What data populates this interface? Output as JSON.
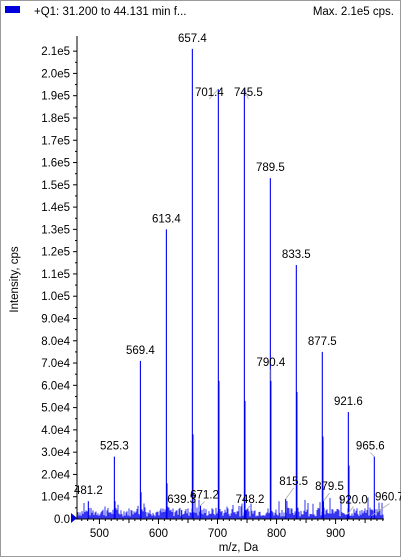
{
  "header": {
    "scan_title": "+Q1: 31.200 to 44.131 min f...",
    "max_label": "Max. 2.1e5 cps."
  },
  "colors": {
    "trace": "#0000ee",
    "leader": "#a6a6a6",
    "axis": "#000000",
    "marker": "#0000dd"
  },
  "chart_data": {
    "type": "line",
    "title": "",
    "xlabel": "m/z, Da",
    "ylabel": "Intensity, cps",
    "xlim": [
      462,
      982
    ],
    "ylim": [
      0,
      215000
    ],
    "x_ticks": [
      {
        "value": 500,
        "label": "500"
      },
      {
        "value": 600,
        "label": "600"
      },
      {
        "value": 700,
        "label": "700"
      },
      {
        "value": 800,
        "label": "800"
      },
      {
        "value": 900,
        "label": "900"
      }
    ],
    "y_ticks": [
      {
        "value": 0,
        "label": "0.0"
      },
      {
        "value": 10000,
        "label": "1.0e4"
      },
      {
        "value": 20000,
        "label": "2.0e4"
      },
      {
        "value": 30000,
        "label": "3.0e4"
      },
      {
        "value": 40000,
        "label": "4.0e4"
      },
      {
        "value": 50000,
        "label": "5.0e4"
      },
      {
        "value": 60000,
        "label": "6.0e4"
      },
      {
        "value": 70000,
        "label": "7.0e4"
      },
      {
        "value": 80000,
        "label": "8.0e4"
      },
      {
        "value": 90000,
        "label": "9.0e4"
      },
      {
        "value": 100000,
        "label": "1.0e5"
      },
      {
        "value": 110000,
        "label": "1.1e5"
      },
      {
        "value": 120000,
        "label": "1.2e5"
      },
      {
        "value": 130000,
        "label": "1.3e5"
      },
      {
        "value": 140000,
        "label": "1.4e5"
      },
      {
        "value": 150000,
        "label": "1.5e5"
      },
      {
        "value": 160000,
        "label": "1.6e5"
      },
      {
        "value": 170000,
        "label": "1.7e5"
      },
      {
        "value": 180000,
        "label": "1.8e5"
      },
      {
        "value": 190000,
        "label": "1.9e5"
      },
      {
        "value": 200000,
        "label": "2.0e5"
      },
      {
        "value": 210000,
        "label": "2.1e5"
      }
    ],
    "labeled_peaks": [
      {
        "mz": 481.2,
        "intensity": 8000,
        "label": "481.2"
      },
      {
        "mz": 525.3,
        "intensity": 28000,
        "label": "525.3"
      },
      {
        "mz": 569.4,
        "intensity": 71000,
        "label": "569.4"
      },
      {
        "mz": 613.4,
        "intensity": 130000,
        "label": "613.4"
      },
      {
        "mz": 639.3,
        "intensity": 4000,
        "label": "639.3"
      },
      {
        "mz": 657.4,
        "intensity": 211000,
        "label": "657.4"
      },
      {
        "mz": 671.2,
        "intensity": 6000,
        "label": "671.2"
      },
      {
        "mz": 701.4,
        "intensity": 193000,
        "label": "701.4"
      },
      {
        "mz": 745.5,
        "intensity": 193000,
        "label": "745.5"
      },
      {
        "mz": 748.2,
        "intensity": 4000,
        "label": "748.2"
      },
      {
        "mz": 789.5,
        "intensity": 153000,
        "label": "789.5"
      },
      {
        "mz": 790.4,
        "intensity": 62000,
        "label": "790.4"
      },
      {
        "mz": 815.5,
        "intensity": 9000,
        "label": "815.5"
      },
      {
        "mz": 833.5,
        "intensity": 114000,
        "label": "833.5"
      },
      {
        "mz": 877.5,
        "intensity": 75000,
        "label": "877.5"
      },
      {
        "mz": 879.5,
        "intensity": 8000,
        "label": "879.5"
      },
      {
        "mz": 920.0,
        "intensity": 2000,
        "label": "920.0"
      },
      {
        "mz": 921.6,
        "intensity": 48000,
        "label": "921.6"
      },
      {
        "mz": 960.7,
        "intensity": 1500,
        "label": "960.7"
      },
      {
        "mz": 965.6,
        "intensity": 28000,
        "label": "965.6"
      }
    ],
    "unlabeled_peaks": [
      {
        "mz": 658.4,
        "intensity": 38000
      },
      {
        "mz": 702.4,
        "intensity": 62000
      },
      {
        "mz": 746.5,
        "intensity": 53000
      },
      {
        "mz": 834.5,
        "intensity": 57000
      },
      {
        "mz": 878.5,
        "intensity": 37000
      },
      {
        "mz": 922.6,
        "intensity": 24000
      },
      {
        "mz": 570.4,
        "intensity": 12000
      },
      {
        "mz": 614.4,
        "intensity": 16000
      },
      {
        "mz": 526.3,
        "intensity": 8000
      }
    ],
    "noise_level": 4500,
    "grid": false,
    "legend": "top-left"
  }
}
